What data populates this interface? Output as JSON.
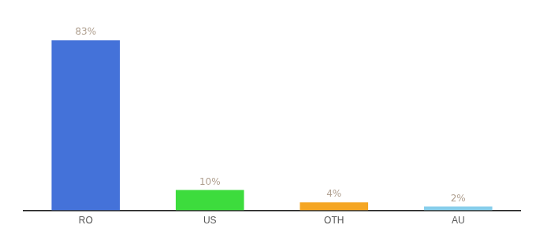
{
  "chart_data": {
    "type": "bar",
    "categories": [
      "RO",
      "US",
      "OTH",
      "AU"
    ],
    "values": [
      83,
      10,
      4,
      2
    ],
    "value_labels": [
      "83%",
      "10%",
      "4%",
      "2%"
    ],
    "colors": [
      "#4472d9",
      "#3ddc3d",
      "#f5a623",
      "#87ceeb"
    ],
    "ylim": [
      0,
      95
    ],
    "grid": false,
    "data_labels": true,
    "tick_labels": "x"
  }
}
